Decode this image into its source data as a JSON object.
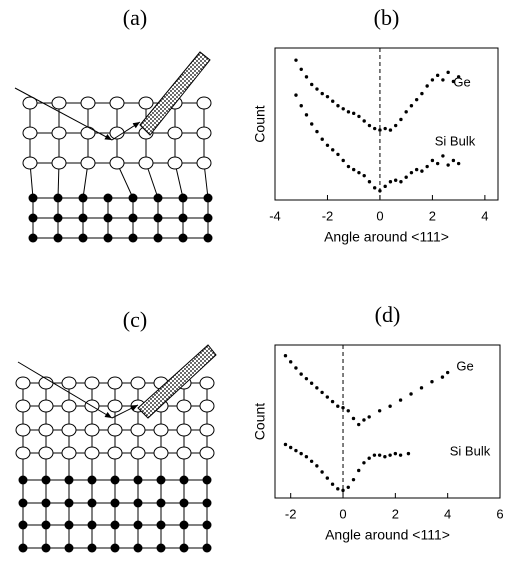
{
  "diagrams": [
    {
      "label": "(a)"
    },
    {
      "label": "(c)"
    }
  ],
  "chart_data": [
    {
      "type": "scatter",
      "panel_label": "(b)",
      "xlabel": "Angle around <111>",
      "ylabel": "Count",
      "xlim": [
        -4,
        4.5
      ],
      "ylim": [
        0,
        10
      ],
      "xticks": [
        -4,
        -2,
        0,
        2,
        4
      ],
      "vline": 0,
      "series": [
        {
          "name": "Ge",
          "color": "#000",
          "x": [
            -3.2,
            -3,
            -2.8,
            -2.6,
            -2.4,
            -2.2,
            -2,
            -1.8,
            -1.6,
            -1.4,
            -1.2,
            -1,
            -0.8,
            -0.6,
            -0.4,
            -0.2,
            0,
            0.2,
            0.4,
            0.6,
            0.8,
            1,
            1.2,
            1.4,
            1.6,
            1.8,
            2,
            2.2,
            2.4,
            2.6,
            2.8,
            3
          ],
          "y": [
            9.2,
            8.6,
            8.1,
            7.6,
            7.3,
            7.0,
            6.8,
            6.5,
            6.2,
            6.0,
            5.8,
            5.7,
            5.5,
            5.2,
            4.9,
            4.7,
            4.6,
            4.7,
            4.6,
            4.9,
            5.3,
            5.8,
            6.2,
            6.6,
            7.0,
            7.5,
            7.9,
            8.2,
            7.9,
            8.4,
            7.8,
            8.1
          ]
        },
        {
          "name": "Si Bulk",
          "color": "#000",
          "x": [
            -3.2,
            -3,
            -2.8,
            -2.6,
            -2.4,
            -2.2,
            -2,
            -1.8,
            -1.6,
            -1.4,
            -1.2,
            -1,
            -0.8,
            -0.6,
            -0.4,
            -0.2,
            0,
            0.2,
            0.4,
            0.6,
            0.8,
            1,
            1.2,
            1.4,
            1.6,
            1.8,
            2,
            2.2,
            2.4,
            2.6,
            2.8,
            3
          ],
          "y": [
            6.9,
            6.2,
            5.6,
            5.0,
            4.5,
            4.0,
            3.6,
            3.3,
            3.0,
            2.6,
            2.2,
            2.0,
            1.8,
            1.6,
            1.2,
            0.8,
            0.6,
            0.9,
            1.2,
            1.3,
            1.2,
            1.5,
            1.8,
            2.0,
            1.9,
            2.2,
            2.6,
            2.4,
            2.9,
            2.3,
            2.6,
            2.4
          ]
        }
      ]
    },
    {
      "type": "scatter",
      "panel_label": "(d)",
      "xlabel": "Angle around <111>",
      "ylabel": "Count",
      "xlim": [
        -2.6,
        6
      ],
      "ylim": [
        0,
        10
      ],
      "xticks": [
        -2,
        0,
        2,
        4,
        6
      ],
      "vline": 0,
      "series": [
        {
          "name": "Ge",
          "color": "#000",
          "x": [
            -2.2,
            -2,
            -1.8,
            -1.6,
            -1.4,
            -1.2,
            -1,
            -0.8,
            -0.6,
            -0.4,
            -0.2,
            0,
            0.2,
            0.4,
            0.6,
            0.8,
            1,
            1.4,
            1.8,
            2.2,
            2.6,
            3,
            3.4,
            3.8,
            4
          ],
          "y": [
            9.3,
            8.9,
            8.5,
            8.1,
            7.8,
            7.5,
            7.2,
            6.9,
            6.6,
            6.3,
            6.0,
            5.9,
            5.7,
            5.2,
            4.8,
            5.1,
            5.3,
            5.7,
            6.0,
            6.4,
            6.8,
            7.2,
            7.6,
            7.9,
            8.2
          ]
        },
        {
          "name": "Si Bulk",
          "color": "#000",
          "x": [
            -2.2,
            -2,
            -1.8,
            -1.6,
            -1.4,
            -1.2,
            -1,
            -0.8,
            -0.6,
            -0.4,
            -0.2,
            0,
            0.2,
            0.4,
            0.6,
            0.8,
            1,
            1.2,
            1.4,
            1.6,
            1.8,
            2,
            2.2,
            2.5
          ],
          "y": [
            3.5,
            3.3,
            3.1,
            2.9,
            2.7,
            2.4,
            2.1,
            1.7,
            1.3,
            0.9,
            0.6,
            0.5,
            0.7,
            1.2,
            1.8,
            2.3,
            2.6,
            2.8,
            2.8,
            2.7,
            2.8,
            2.9,
            2.8,
            2.9
          ]
        }
      ]
    }
  ]
}
